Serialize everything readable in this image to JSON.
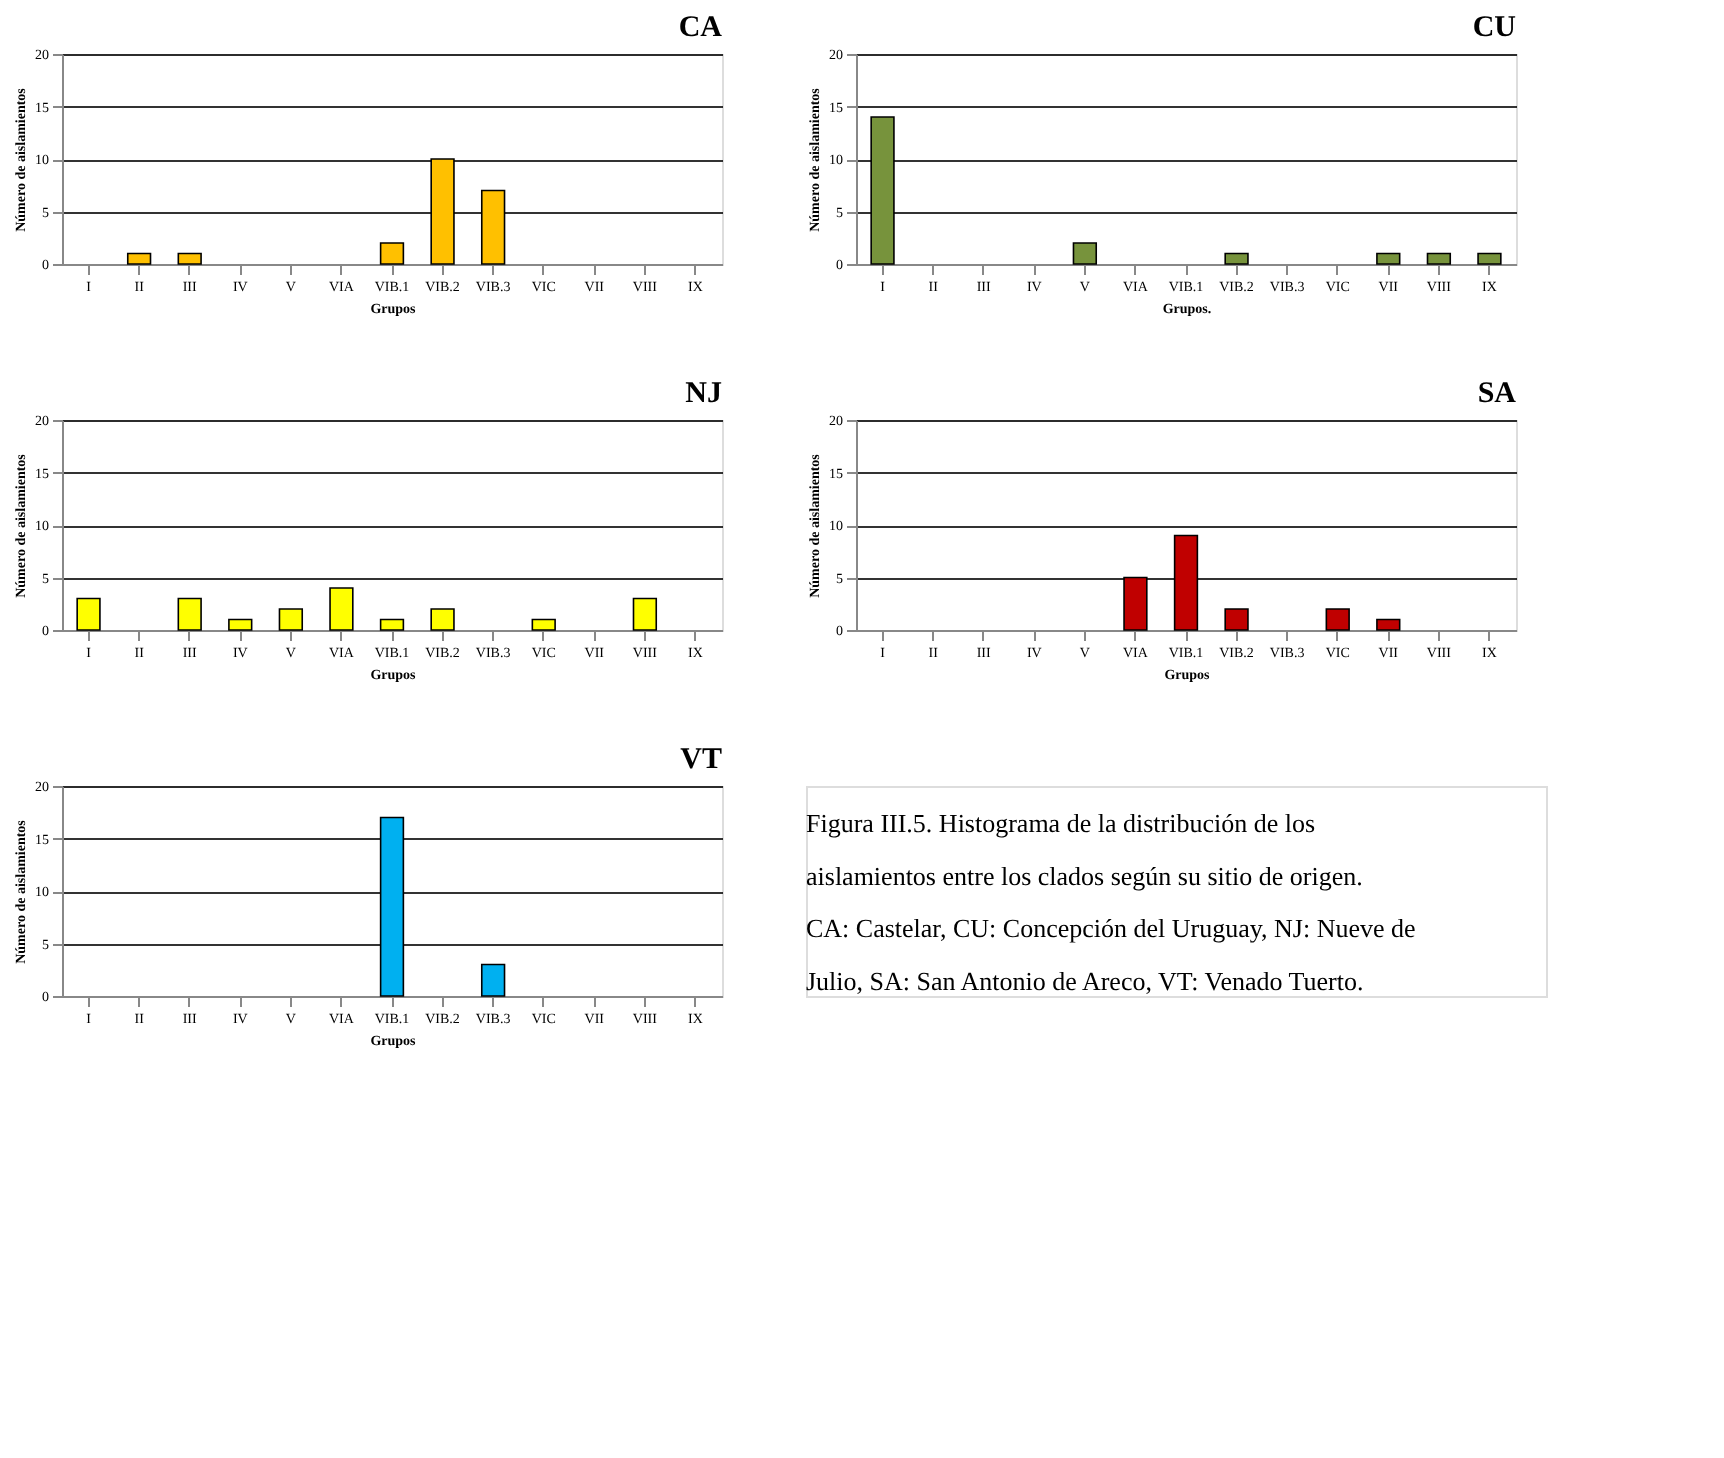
{
  "chart_data": [
    {
      "type": "bar",
      "title": "CA",
      "xlabel": "Grupos",
      "ylabel": "Número de aislamientos",
      "categories": [
        "I",
        "II",
        "III",
        "IV",
        "V",
        "VIA",
        "VIB.1",
        "VIB.2",
        "VIB.3",
        "VIC",
        "VII",
        "VIII",
        "IX"
      ],
      "values": [
        0,
        1,
        1,
        0,
        0,
        0,
        2,
        10,
        7,
        0,
        0,
        0,
        0
      ],
      "color": "#ffc000",
      "ylim": [
        0,
        20
      ],
      "yticks": [
        0,
        5,
        10,
        15,
        20
      ],
      "grid": "y"
    },
    {
      "type": "bar",
      "title": "CU",
      "xlabel": "Grupos.",
      "ylabel": "Número de aislamientos",
      "categories": [
        "I",
        "II",
        "III",
        "IV",
        "V",
        "VIA",
        "VIB.1",
        "VIB.2",
        "VIB.3",
        "VIC",
        "VII",
        "VIII",
        "IX"
      ],
      "values": [
        14,
        0,
        0,
        0,
        2,
        0,
        0,
        1,
        0,
        0,
        1,
        1,
        1
      ],
      "color": "#77933c",
      "ylim": [
        0,
        20
      ],
      "yticks": [
        0,
        5,
        10,
        15,
        20
      ],
      "grid": "y"
    },
    {
      "type": "bar",
      "title": "NJ",
      "xlabel": "Grupos",
      "ylabel": "Número de aislamientos",
      "categories": [
        "I",
        "II",
        "III",
        "IV",
        "V",
        "VIA",
        "VIB.1",
        "VIB.2",
        "VIB.3",
        "VIC",
        "VII",
        "VIII",
        "IX"
      ],
      "values": [
        3,
        0,
        3,
        1,
        2,
        4,
        1,
        2,
        0,
        1,
        0,
        3,
        0
      ],
      "color": "#ffff00",
      "ylim": [
        0,
        20
      ],
      "yticks": [
        0,
        5,
        10,
        15,
        20
      ],
      "grid": "y"
    },
    {
      "type": "bar",
      "title": "SA",
      "xlabel": "Grupos",
      "ylabel": "Número de aislamientos",
      "categories": [
        "I",
        "II",
        "III",
        "IV",
        "V",
        "VIA",
        "VIB.1",
        "VIB.2",
        "VIB.3",
        "VIC",
        "VII",
        "VIII",
        "IX"
      ],
      "values": [
        0,
        0,
        0,
        0,
        0,
        5,
        9,
        2,
        0,
        2,
        1,
        0,
        0
      ],
      "color": "#c00000",
      "ylim": [
        0,
        20
      ],
      "yticks": [
        0,
        5,
        10,
        15,
        20
      ],
      "grid": "y"
    },
    {
      "type": "bar",
      "title": "VT",
      "xlabel": "Grupos",
      "ylabel": "Número de aislamientos",
      "categories": [
        "I",
        "II",
        "III",
        "IV",
        "V",
        "VIA",
        "VIB.1",
        "VIB.2",
        "VIB.3",
        "VIC",
        "VII",
        "VIII",
        "IX"
      ],
      "values": [
        0,
        0,
        0,
        0,
        0,
        0,
        17,
        0,
        3,
        0,
        0,
        0,
        0
      ],
      "color": "#00b0f0",
      "ylim": [
        0,
        20
      ],
      "yticks": [
        0,
        5,
        10,
        15,
        20
      ],
      "grid": "y"
    },
    {
      "type": "other",
      "annotations": [
        "Figura III.5. Histograma de la distribución de los aislamientos entre los clados según su sitio de origen. CA: Castelar, CU: Concepción del Uruguay, NJ: Nueve de Julio, SA: San Antonio de Areco, VT: Venado Tuerto."
      ]
    }
  ]
}
